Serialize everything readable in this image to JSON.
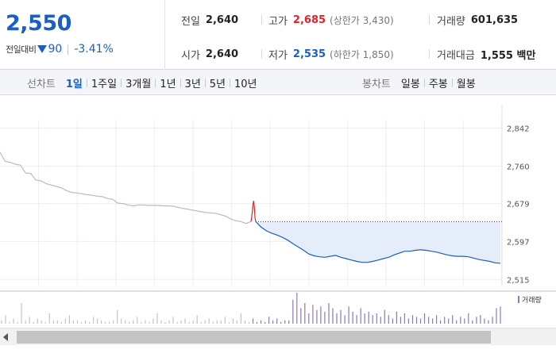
{
  "summary": {
    "current_price": "2,550",
    "change_label": "전일대비",
    "change_amount": "90",
    "change_rate": "-3.41%",
    "prev_close": {
      "label": "전일",
      "value": "2,640"
    },
    "open": {
      "label": "시가",
      "value": "2,640"
    },
    "high": {
      "label": "고가",
      "value": "2,685",
      "limit": "(상한가 3,430)"
    },
    "low": {
      "label": "저가",
      "value": "2,535",
      "limit": "(하한가 1,850)"
    },
    "volume": {
      "label": "거래량",
      "value": "601,635"
    },
    "trade_value": {
      "label": "거래대금",
      "value": "1,555 백만"
    },
    "colors": {
      "down": "#1a5fc8",
      "up": "#e0222b"
    }
  },
  "toolbar": {
    "line_title": "선차트",
    "line_periods": [
      "1일",
      "1주일",
      "3개월",
      "1년",
      "3년",
      "5년",
      "10년"
    ],
    "active_period": "1일",
    "candle_title": "봉차트",
    "candle_periods": [
      "일봉",
      "주봉",
      "월봉"
    ]
  },
  "chart_data": {
    "type": "line",
    "title": "",
    "y_ticks": [
      "2,842",
      "2,760",
      "2,679",
      "2,597",
      "2,515"
    ],
    "ylim": [
      2500,
      2860
    ],
    "prev_close": 2640,
    "volume_legend": "거래량",
    "grid": true,
    "series": [
      {
        "color": "#bbbbbb",
        "values": [
          2790,
          2770,
          2768,
          2764,
          2762,
          2745,
          2744,
          2730,
          2728,
          2722,
          2719,
          2716,
          2713,
          2707,
          2703,
          2702,
          2700,
          2698,
          2697,
          2695,
          2694,
          2690,
          2688,
          2680,
          2679,
          2676,
          2674,
          2676,
          2676,
          2675,
          2675,
          2675,
          2674,
          2674,
          2673,
          2670,
          2668,
          2666,
          2664,
          2662,
          2660,
          2659,
          2658,
          2655,
          2652,
          2646,
          2642,
          2640,
          2636,
          2640
        ]
      },
      {
        "color": "#e0222b",
        "values": [
          2640,
          2650,
          2662,
          2678,
          2685,
          2670,
          2648,
          2640
        ]
      },
      {
        "color": "#1a5fc8",
        "values": [
          2640,
          2628,
          2620,
          2615,
          2611,
          2606,
          2600,
          2592,
          2585,
          2578,
          2570,
          2566,
          2564,
          2563,
          2565,
          2567,
          2563,
          2560,
          2557,
          2554,
          2552,
          2552,
          2554,
          2557,
          2560,
          2563,
          2568,
          2572,
          2576,
          2576,
          2578,
          2579,
          2578,
          2576,
          2574,
          2571,
          2568,
          2566,
          2565,
          2565,
          2564,
          2561,
          2558,
          2556,
          2554,
          2551,
          2550
        ]
      }
    ],
    "volume": [
      2,
      5,
      1,
      3,
      1,
      12,
      2,
      4,
      1,
      3,
      2,
      1,
      6,
      2,
      2,
      1,
      3,
      5,
      2,
      2,
      1,
      2,
      1,
      4,
      3,
      2,
      1,
      1,
      2,
      8,
      3,
      2,
      1,
      2,
      4,
      1,
      2,
      1,
      3,
      6,
      2,
      1,
      2,
      4,
      1,
      2,
      3,
      1,
      2,
      5,
      1,
      2,
      3,
      1,
      2,
      2,
      4,
      1,
      3,
      2,
      6,
      2,
      1,
      3,
      1,
      2,
      1,
      4,
      2,
      3,
      1,
      2,
      2,
      14,
      18,
      9,
      12,
      6,
      11,
      8,
      10,
      7,
      12,
      9,
      6,
      8,
      5,
      10,
      7,
      5,
      9,
      6,
      7,
      5,
      6,
      4,
      8,
      5,
      3,
      7,
      4,
      6,
      3,
      5,
      4,
      3,
      6,
      4,
      3,
      5,
      2,
      4,
      3,
      5,
      2,
      4,
      3,
      6,
      2,
      4,
      5,
      3,
      2,
      4,
      9,
      10
    ]
  }
}
